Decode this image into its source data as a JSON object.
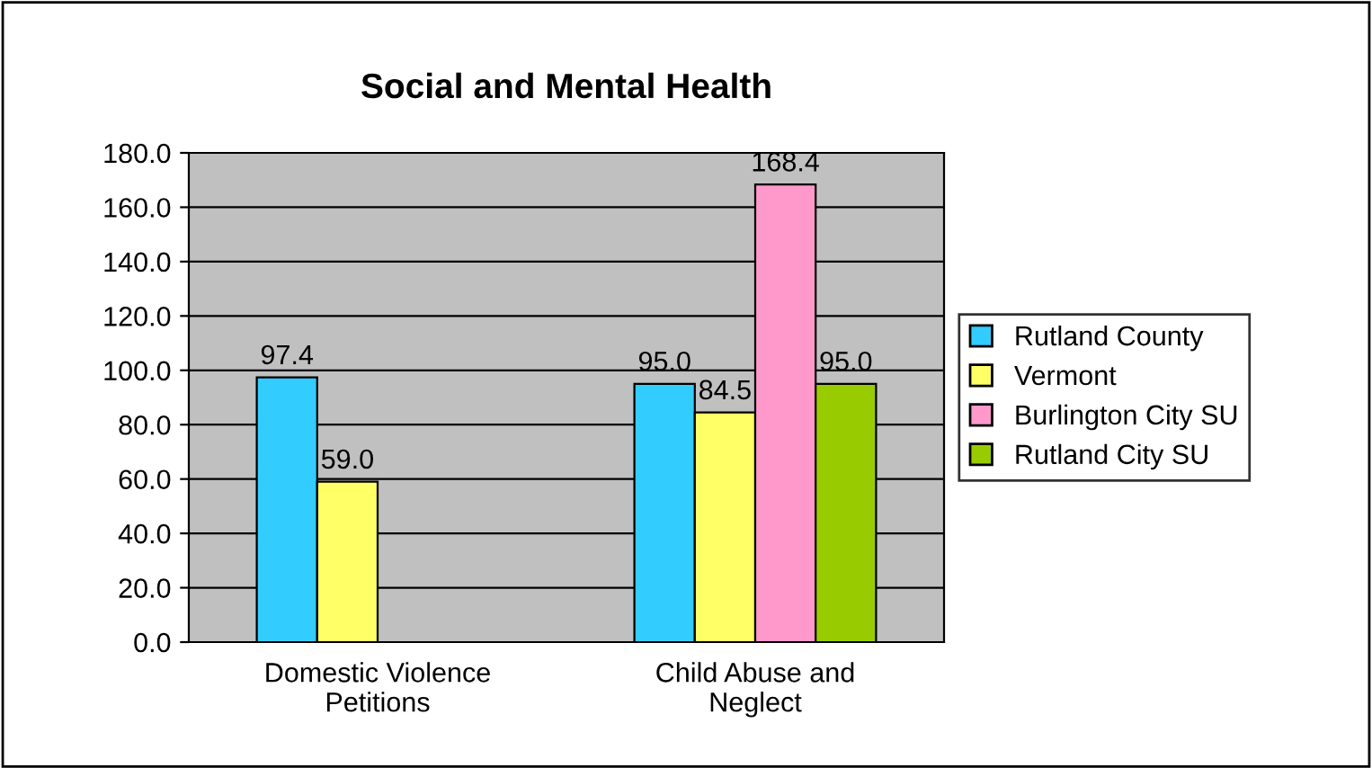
{
  "chart_data": {
    "type": "bar",
    "title": "Social and Mental Health",
    "categories": [
      "Domestic Violence\nPetitions",
      "Child Abuse and\nNeglect"
    ],
    "series": [
      {
        "name": "Rutland County",
        "color": "#33ccff",
        "values": [
          97.4,
          95.0
        ],
        "value_labels": [
          "97.4",
          "95.0"
        ]
      },
      {
        "name": "Vermont",
        "color": "#ffff66",
        "values": [
          59.0,
          84.5
        ],
        "value_labels": [
          "59.0",
          "84.5"
        ]
      },
      {
        "name": "Burlington City SU",
        "color": "#ff99cc",
        "values": [
          null,
          168.4
        ],
        "value_labels": [
          null,
          "168.4"
        ]
      },
      {
        "name": "Rutland City SU",
        "color": "#99cc00",
        "values": [
          null,
          95.0
        ],
        "value_labels": [
          null,
          "95.0"
        ]
      }
    ],
    "ylim": [
      0,
      180
    ],
    "yticks": [
      {
        "value": 0,
        "label": "0.0"
      },
      {
        "value": 20,
        "label": "20.0"
      },
      {
        "value": 40,
        "label": "40.0"
      },
      {
        "value": 60,
        "label": "60.0"
      },
      {
        "value": 80,
        "label": "80.0"
      },
      {
        "value": 100,
        "label": "100.0"
      },
      {
        "value": 120,
        "label": "120.0"
      },
      {
        "value": 140,
        "label": "140.0"
      },
      {
        "value": 160,
        "label": "160.0"
      },
      {
        "value": 180,
        "label": "180.0"
      }
    ],
    "grid": "y",
    "legend": "right"
  }
}
